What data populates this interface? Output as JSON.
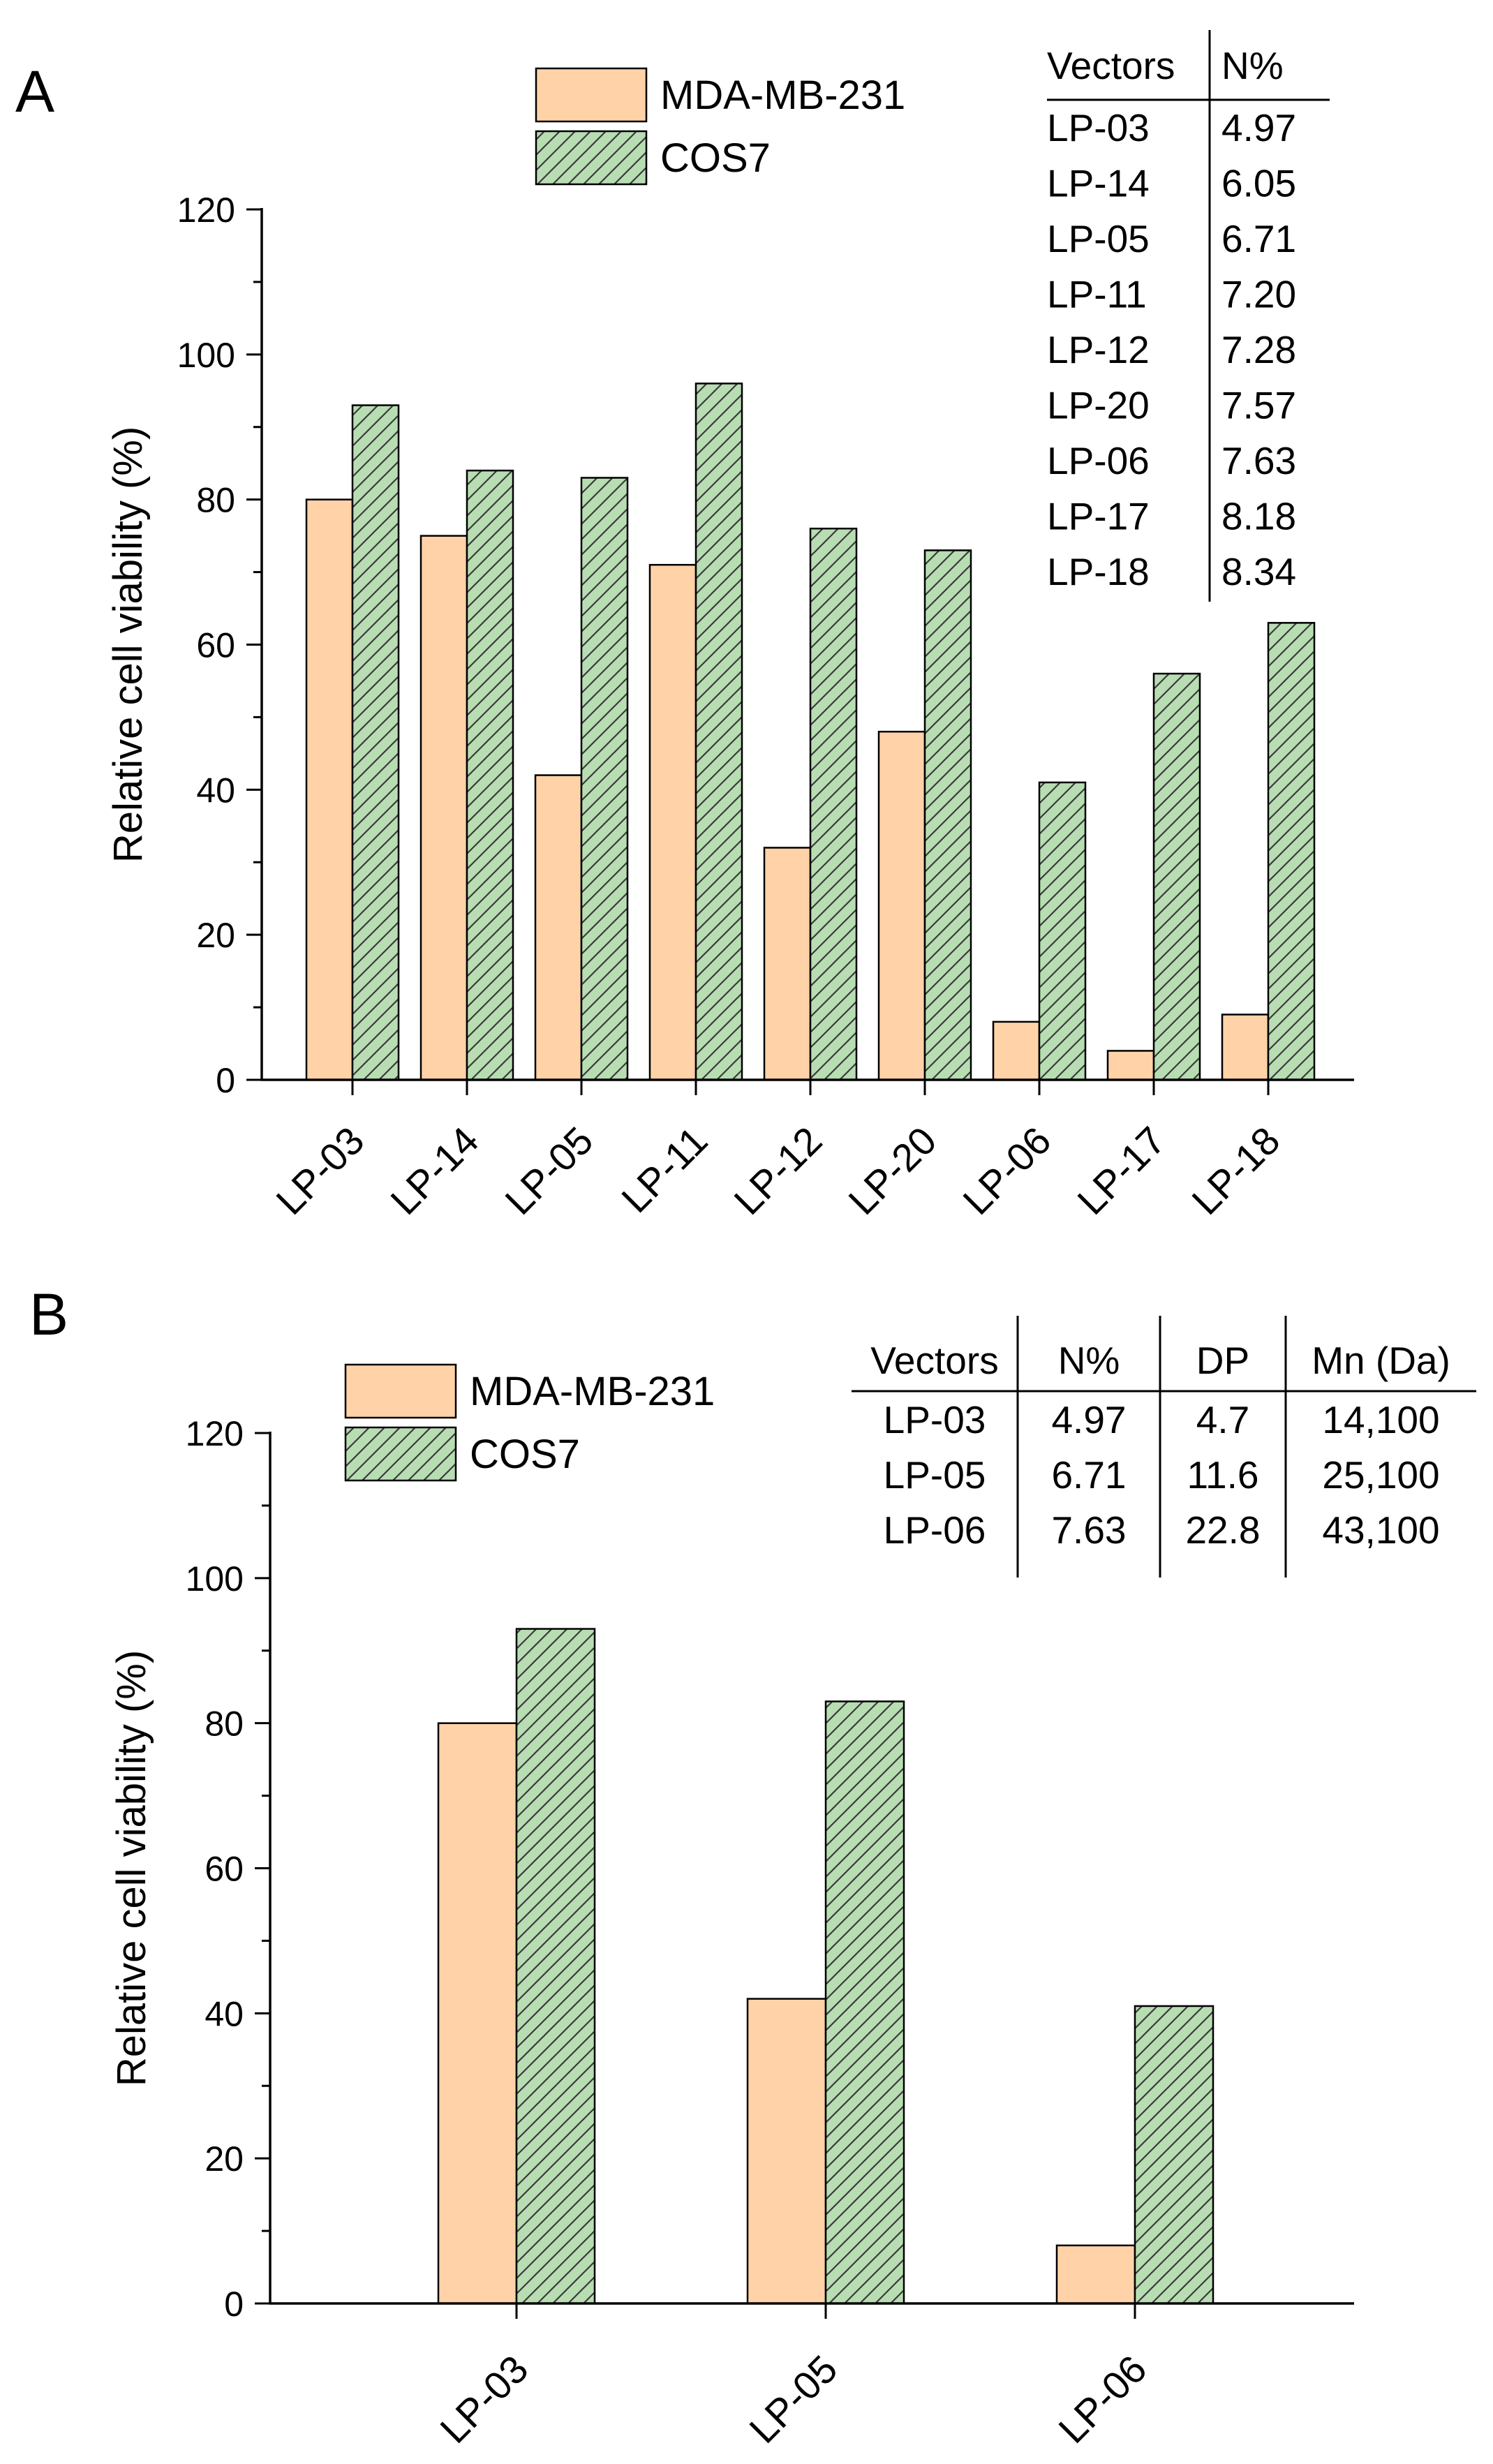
{
  "colors": {
    "mda": "#FFD2A8",
    "cos7": "#B8DDB3",
    "stroke": "#000000",
    "hatch": "#3a3a3a"
  },
  "chart_data": [
    {
      "panel_label": "A",
      "type": "bar",
      "ylabel": "Relative cell viability (%)",
      "ylim": [
        0,
        120
      ],
      "yticks": [
        0,
        20,
        40,
        60,
        80,
        100,
        120
      ],
      "categories": [
        "LP-03",
        "LP-14",
        "LP-05",
        "LP-11",
        "LP-12",
        "LP-20",
        "LP-06",
        "LP-17",
        "LP-18"
      ],
      "series": [
        {
          "name": "MDA-MB-231",
          "values": [
            80,
            75,
            42,
            71,
            32,
            48,
            8,
            4,
            9
          ]
        },
        {
          "name": "COS7",
          "values": [
            93,
            84,
            83,
            96,
            76,
            73,
            41,
            56,
            63
          ]
        }
      ],
      "legend": [
        "MDA-MB-231",
        "COS7"
      ],
      "inset_table": {
        "headers": [
          "Vectors",
          "N%"
        ],
        "rows": [
          [
            "LP-03",
            "4.97"
          ],
          [
            "LP-14",
            "6.05"
          ],
          [
            "LP-05",
            "6.71"
          ],
          [
            "LP-11",
            "7.20"
          ],
          [
            "LP-12",
            "7.28"
          ],
          [
            "LP-20",
            "7.57"
          ],
          [
            "LP-06",
            "7.63"
          ],
          [
            "LP-17",
            "8.18"
          ],
          [
            "LP-18",
            "8.34"
          ]
        ]
      }
    },
    {
      "panel_label": "B",
      "type": "bar",
      "ylabel": "Relative cell viability (%)",
      "ylim": [
        0,
        120
      ],
      "yticks": [
        0,
        20,
        40,
        60,
        80,
        100,
        120
      ],
      "categories": [
        "LP-03",
        "LP-05",
        "LP-06"
      ],
      "series": [
        {
          "name": "MDA-MB-231",
          "values": [
            80,
            42,
            8
          ]
        },
        {
          "name": "COS7",
          "values": [
            93,
            83,
            41
          ]
        }
      ],
      "legend": [
        "MDA-MB-231",
        "COS7"
      ],
      "inset_table": {
        "headers": [
          "Vectors",
          "N%",
          "DP",
          "Mn (Da)"
        ],
        "rows": [
          [
            "LP-03",
            "4.97",
            "4.7",
            "14,100"
          ],
          [
            "LP-05",
            "6.71",
            "11.6",
            "25,100"
          ],
          [
            "LP-06",
            "7.63",
            "22.8",
            "43,100"
          ]
        ]
      }
    }
  ]
}
